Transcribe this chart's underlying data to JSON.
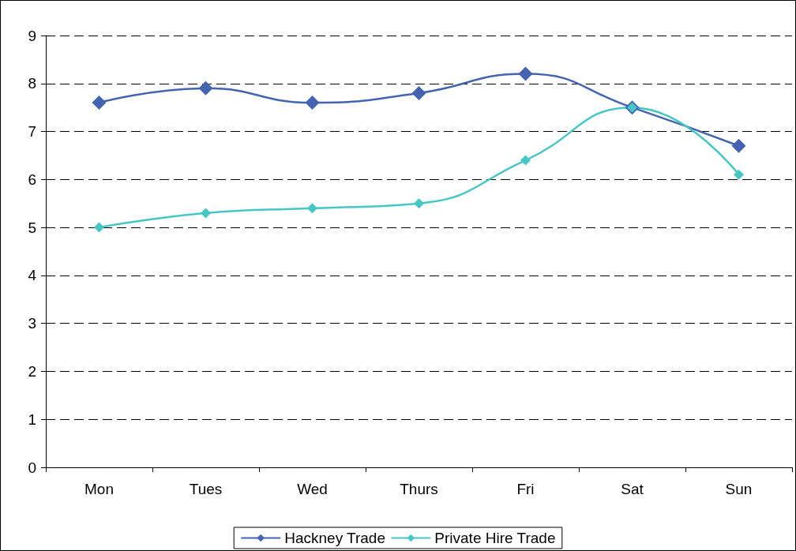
{
  "chart_data": {
    "type": "line",
    "categories": [
      "Mon",
      "Tues",
      "Wed",
      "Thurs",
      "Fri",
      "Sat",
      "Sun"
    ],
    "series": [
      {
        "name": "Hackney Trade",
        "color": "#4463b0",
        "values": [
          7.6,
          7.9,
          7.6,
          7.8,
          8.2,
          7.5,
          6.7
        ]
      },
      {
        "name": "Private Hire Trade",
        "color": "#47c6c6",
        "values": [
          5.0,
          5.3,
          5.4,
          5.5,
          6.4,
          7.5,
          6.1
        ]
      }
    ],
    "ylim": [
      0,
      9
    ],
    "yticks": [
      0,
      1,
      2,
      3,
      4,
      5,
      6,
      7,
      8,
      9
    ],
    "grid": "y",
    "legend": "bottom",
    "marker": "diamond",
    "line_style": "solid"
  }
}
